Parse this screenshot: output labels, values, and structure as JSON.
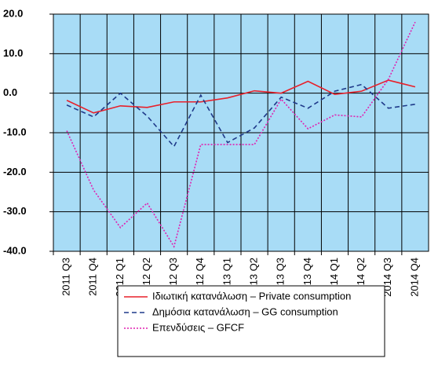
{
  "chart_data": {
    "type": "line",
    "categories": [
      "2011 Q3",
      "2011 Q4",
      "2012 Q1",
      "2012 Q2",
      "2012 Q3",
      "2012 Q4",
      "2013 Q1",
      "2013 Q2",
      "2013 Q3",
      "2013 Q4",
      "2014 Q1",
      "2014 Q2",
      "2014 Q3",
      "2014 Q4"
    ],
    "series": [
      {
        "name": "Ιδιωτική κατανάλωση – Private consumption",
        "color": "#e8202a",
        "dash": "solid",
        "values": [
          -1.8,
          -5.0,
          -3.2,
          -3.6,
          -2.2,
          -2.2,
          -1.2,
          0.6,
          0.0,
          3.0,
          -0.3,
          0.5,
          3.3,
          1.6
        ]
      },
      {
        "name": "Δημόσια κατανάλωση – GG consumption",
        "color": "#1f3a8a",
        "dash": "dashed",
        "values": [
          -3.0,
          -6.0,
          0.0,
          -5.8,
          -13.5,
          -0.5,
          -12.5,
          -8.8,
          -1.0,
          -3.8,
          0.5,
          2.2,
          -3.8,
          -2.8
        ]
      },
      {
        "name": "Επενδύσεις – GFCF",
        "color": "#e020b0",
        "dash": "dotted",
        "values": [
          -9.5,
          -24.5,
          -34.0,
          -27.8,
          -38.8,
          -13.0,
          -13.0,
          -13.0,
          -1.5,
          -9.0,
          -5.5,
          -6.0,
          3.5,
          18.0
        ]
      }
    ],
    "ylim": [
      -40,
      20
    ],
    "yticks": [
      {
        "value": -40,
        "label": "-40.0"
      },
      {
        "value": -30,
        "label": "-30.0"
      },
      {
        "value": -20,
        "label": "-20.0"
      },
      {
        "value": -10,
        "label": "-10.0"
      },
      {
        "value": 0,
        "label": "0.0"
      },
      {
        "value": 10,
        "label": "10.0"
      },
      {
        "value": 20,
        "label": "20.0"
      }
    ],
    "grid": true,
    "background": "#a8dcf6",
    "legend": "bottom"
  }
}
